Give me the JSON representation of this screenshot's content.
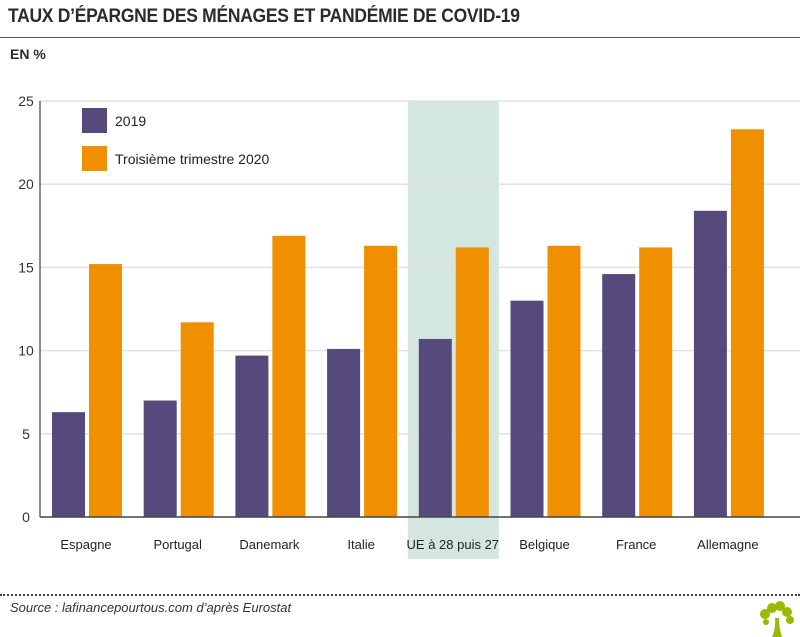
{
  "title": "TAUX D’ÉPARGNE DES MÉNAGES ET PANDÉMIE DE COVID-19",
  "unit_label": "EN %",
  "source": "Source : lafinancepourtous.com d’après Eurostat",
  "colors": {
    "series_2019": "#564a7c",
    "series_2020": "#f08f00",
    "highlight": "#d3e6e0",
    "logo": "#9cb800"
  },
  "chart_data": {
    "type": "bar",
    "ylim": [
      0,
      25
    ],
    "yticks": [
      "0",
      "5",
      "10",
      "15",
      "20",
      "25"
    ],
    "grid": true,
    "legend_position": "top-left",
    "highlighted_category": "UE à 28 puis 27",
    "categories": [
      "Espagne",
      "Portugal",
      "Danemark",
      "Italie",
      "UE à 28 puis 27",
      "Belgique",
      "France",
      "Allemagne"
    ],
    "series": [
      {
        "name": "2019",
        "values": [
          6.3,
          7.0,
          9.7,
          10.1,
          10.7,
          13.0,
          14.6,
          18.4
        ]
      },
      {
        "name": "Troisième trimestre 2020",
        "values": [
          15.2,
          11.7,
          16.9,
          16.3,
          16.2,
          16.3,
          16.2,
          23.3
        ]
      }
    ]
  }
}
